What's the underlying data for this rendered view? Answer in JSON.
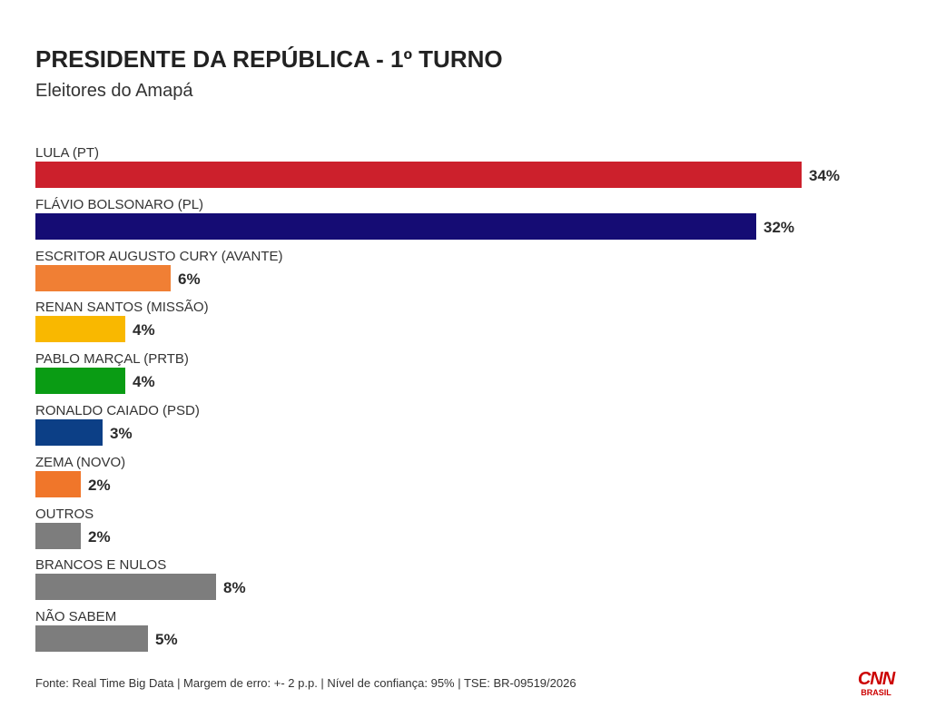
{
  "header": {
    "title": "PRESIDENTE DA REPÚBLICA - 1º TURNO",
    "subtitle": "Eleitores do Amapá"
  },
  "footer": {
    "source": "Fonte: Real Time Big Data | Margem de erro: +- 2 p.p. | Nível de confiança: 95% | TSE: BR-09519/2026"
  },
  "logo": {
    "text": "CNN",
    "subtext": "BRASIL",
    "color": "#cc0000",
    "icon": "cnn-brasil-logo"
  },
  "chart_data": {
    "type": "bar",
    "orientation": "horizontal",
    "title": "PRESIDENTE DA REPÚBLICA - 1º TURNO",
    "subtitle": "Eleitores do Amapá",
    "unit": "%",
    "xlim": [
      0,
      34
    ],
    "grid": false,
    "categories": [
      "LULA (PT)",
      "FLÁVIO BOLSONARO (PL)",
      "ESCRITOR AUGUSTO CURY (AVANTE)",
      "RENAN SANTOS (MISSÃO)",
      "PABLO MARÇAL (PRTB)",
      "RONALDO CAIADO (PSD)",
      "ZEMA (NOVO)",
      "OUTROS",
      "BRANCOS E NULOS",
      "NÃO SABEM"
    ],
    "values": [
      34,
      32,
      6,
      4,
      4,
      3,
      2,
      2,
      8,
      5
    ],
    "labels": [
      "34%",
      "32%",
      "6%",
      "4%",
      "4%",
      "3%",
      "2%",
      "2%",
      "8%",
      "5%"
    ],
    "colors": [
      "#cc202c",
      "#150c74",
      "#f07f34",
      "#f9b800",
      "#0a9c14",
      "#0c3f86",
      "#f0762a",
      "#7d7d7d",
      "#7d7d7d",
      "#7d7d7d"
    ]
  }
}
